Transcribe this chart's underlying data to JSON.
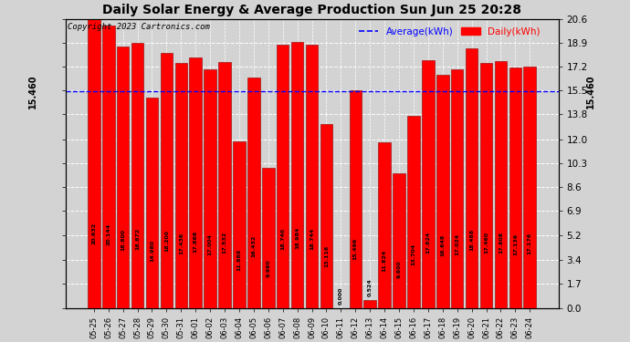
{
  "title": "Daily Solar Energy & Average Production Sun Jun 25 20:28",
  "categories": [
    "05-25",
    "05-26",
    "05-27",
    "05-28",
    "05-29",
    "05-30",
    "05-31",
    "06-01",
    "06-02",
    "06-03",
    "06-04",
    "06-05",
    "06-06",
    "06-07",
    "06-08",
    "06-09",
    "06-10",
    "06-11",
    "06-12",
    "06-13",
    "06-14",
    "06-15",
    "06-16",
    "06-17",
    "06-18",
    "06-19",
    "06-20",
    "06-21",
    "06-22",
    "06-23",
    "06-24"
  ],
  "values": [
    20.632,
    20.144,
    18.6,
    18.872,
    14.98,
    18.2,
    17.436,
    17.868,
    17.004,
    17.532,
    11.888,
    16.432,
    9.98,
    18.74,
    18.984,
    18.744,
    13.116,
    0.0,
    15.496,
    0.524,
    11.824,
    9.6,
    13.704,
    17.624,
    16.648,
    17.024,
    18.488,
    17.46,
    17.608,
    17.136,
    17.176
  ],
  "average": 15.46,
  "bar_color": "#ff0000",
  "average_color": "#0000ff",
  "average_label": "Average(kWh)",
  "daily_label": "Daily(kWh)",
  "avg_label_text": "15.460",
  "ytick_vals": [
    20.6,
    18.9,
    17.2,
    15.5,
    13.8,
    12.0,
    10.3,
    8.6,
    6.9,
    5.2,
    3.4,
    1.7,
    0.0
  ],
  "ymax": 20.6,
  "ymin": 0.0,
  "copyright": "Copyright 2023 Cartronics.com",
  "background_color": "#d3d3d3",
  "grid_color": "#ffffff",
  "bar_edge_color": "#8b0000",
  "title_fontsize": 10,
  "copyright_fontsize": 6.5,
  "legend_fontsize": 7.5,
  "ytick_fontsize": 7.5,
  "xtick_fontsize": 6,
  "val_label_fontsize": 4.5
}
